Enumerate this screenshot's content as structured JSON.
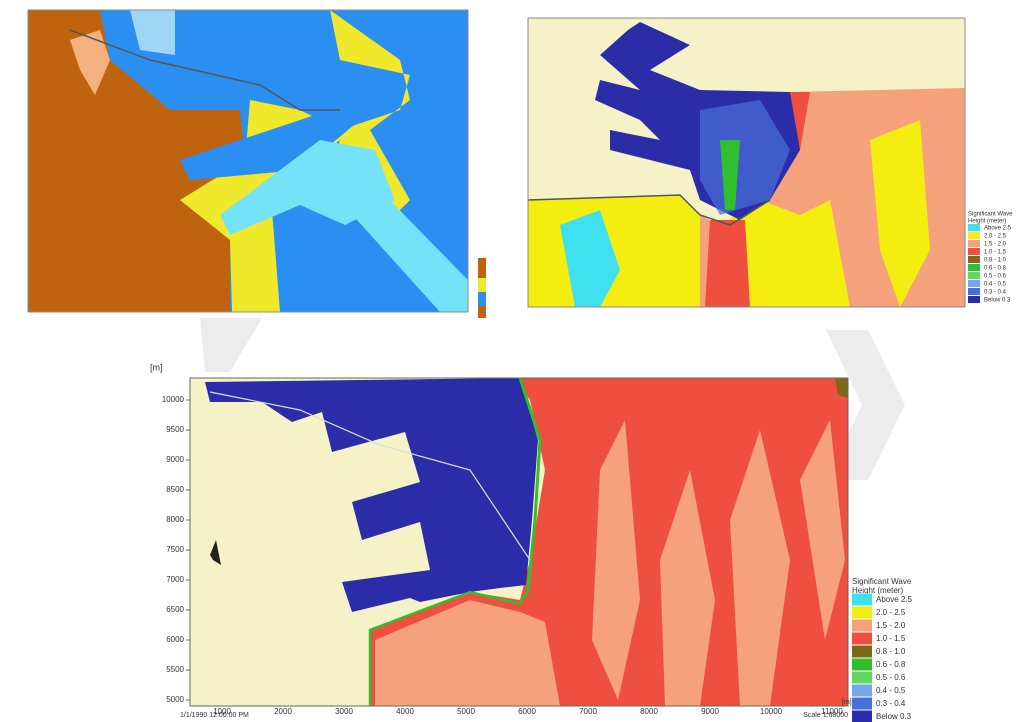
{
  "bottom_panel": {
    "y_unit": "[m]",
    "y_ticks": [
      "10000",
      "9500",
      "9000",
      "8500",
      "8000",
      "7500",
      "7000",
      "6500",
      "6000",
      "5500",
      "5000"
    ],
    "x_ticks": [
      "1000",
      "2000",
      "3000",
      "4000",
      "5000",
      "6000",
      "7000",
      "8000",
      "9000",
      "10000",
      "11000"
    ],
    "x_unit": "[m]",
    "timestamp": "1/1/1990 12:00:00 PM",
    "scale": "Scale 1:68000"
  },
  "legend": {
    "title_line1": "Significant Wave",
    "title_line2": "Height (meter)",
    "entries": [
      {
        "label": "Above 2.5",
        "color": "#3fe0f0"
      },
      {
        "label": "2.0 - 2.5",
        "color": "#f4ee10"
      },
      {
        "label": "1.5 - 2.0",
        "color": "#f5a27c"
      },
      {
        "label": "1.0 - 1.5",
        "color": "#ee4f3f"
      },
      {
        "label": "0.8 - 1.0",
        "color": "#7c6a16"
      },
      {
        "label": "0.6 - 0.8",
        "color": "#2fbf2f"
      },
      {
        "label": "0.5 - 0.6",
        "color": "#63d763"
      },
      {
        "label": "0.4 - 0.5",
        "color": "#76a6ea"
      },
      {
        "label": "0.3 - 0.4",
        "color": "#4a6fd8"
      },
      {
        "label": "Below 0.3",
        "color": "#2b2ca8"
      }
    ]
  }
}
